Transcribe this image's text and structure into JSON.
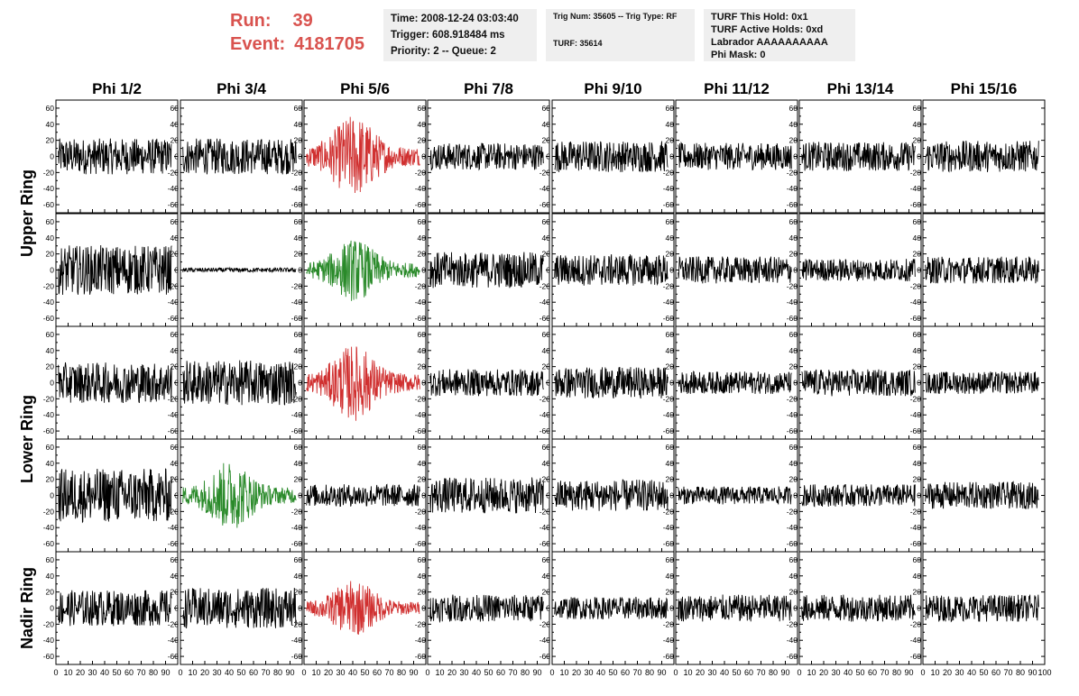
{
  "header": {
    "run_label": "Run:",
    "run_value": "39",
    "event_label": "Event:",
    "event_value": "4181705",
    "info_box_1": [
      "Time: 2008-12-24 03:03:40",
      "Trigger: 608.918484 ms",
      "Priority: 2 -- Queue: 2"
    ],
    "info_box_2": [
      "Trig Num: 35605 -- Trig Type: RF",
      "TURF: 35614"
    ],
    "info_box_3": [
      "TURF This Hold: 0x1",
      "TURF Active Holds: 0xd",
      "Labrador AAAAAAAAAA",
      "Phi Mask: 0"
    ]
  },
  "colors": {
    "normal": "#000000",
    "triggered_red": "#d03030",
    "triggered_green": "#2a8a2a",
    "info_bg": "#efefef",
    "run_text": "#d9534f"
  },
  "chart_data": {
    "type": "line",
    "columns": [
      "Phi 1/2",
      "Phi 3/4",
      "Phi 5/6",
      "Phi 7/8",
      "Phi 9/10",
      "Phi 11/12",
      "Phi 13/14",
      "Phi 15/16"
    ],
    "ring_labels": [
      "Upper Ring",
      "Lower Ring",
      "Nadir Ring"
    ],
    "rows": 5,
    "ring_row_spans": [
      [
        0,
        1
      ],
      [
        2,
        3
      ],
      [
        4,
        4
      ]
    ],
    "xlim": [
      0,
      100
    ],
    "ylim": [
      -70,
      70
    ],
    "y_ticks": [
      -60,
      -40,
      -20,
      0,
      20,
      40,
      60
    ],
    "x_ticks": [
      0,
      10,
      20,
      30,
      40,
      50,
      60,
      70,
      80,
      90,
      100
    ],
    "x_tick_labels": [
      "0",
      "10",
      "20",
      "30",
      "40",
      "50",
      "60",
      "70",
      "80",
      "90",
      "100"
    ],
    "y_tick_labels": [
      "-60",
      "-40",
      "-20",
      "0",
      "20",
      "40",
      "60"
    ],
    "highlighted_cells": [
      {
        "row": 0,
        "col": 2,
        "color": "red"
      },
      {
        "row": 1,
        "col": 2,
        "color": "green"
      },
      {
        "row": 2,
        "col": 2,
        "color": "red"
      },
      {
        "row": 3,
        "col": 1,
        "color": "green"
      },
      {
        "row": 4,
        "col": 2,
        "color": "red"
      }
    ],
    "amplitudes": [
      [
        16,
        16,
        24,
        12,
        14,
        12,
        13,
        14
      ],
      [
        22,
        2,
        18,
        16,
        14,
        12,
        10,
        12
      ],
      [
        18,
        20,
        22,
        12,
        14,
        10,
        12,
        10
      ],
      [
        24,
        20,
        10,
        16,
        14,
        8,
        10,
        12
      ],
      [
        16,
        18,
        16,
        12,
        10,
        12,
        12,
        12
      ]
    ],
    "samples_per_trace": 260
  }
}
